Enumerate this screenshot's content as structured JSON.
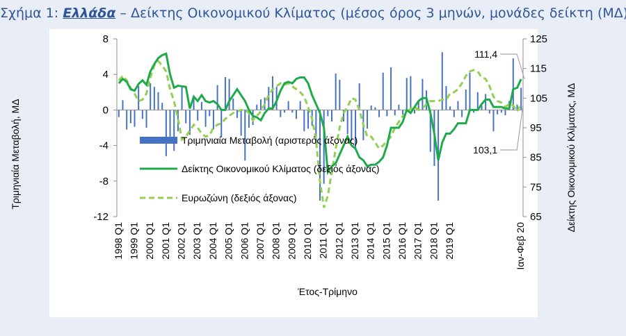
{
  "title": {
    "prefix": "Σχήμα 1: ",
    "country": "Ελλάδα",
    "rest": " – Δείκτης Οικονομικού Κλίματος (μέσος όρος 3 μηνών, μονάδες δείκτη (ΜΔ))"
  },
  "colors": {
    "bars": "#4472c4",
    "esi_line": "#1faa4a",
    "euro_line": "#92d050",
    "title": "#2e5597"
  },
  "chart_data": {
    "type": "bar+line",
    "xlabel": "Έτος-Τρίμηνο",
    "ylabel_left": "Τριμηνιαία Μεταβολή, ΜΔ",
    "ylabel_right": "Δείκτης Οικονομικού Κλίματος, ΜΔ",
    "ylim_left": [
      -12,
      8
    ],
    "ylim_right": [
      65,
      125
    ],
    "yticks_left": [
      "-12",
      "-8",
      "-4",
      "0",
      "4",
      "8"
    ],
    "yticks_right": [
      "65",
      "75",
      "85",
      "95",
      "105",
      "115",
      "125"
    ],
    "x_tick_labels": [
      "1998 Q1",
      "1999 Q1",
      "2000 Q1",
      "2001 Q1",
      "2002 Q1",
      "2003 Q1",
      "2004 Q1",
      "2005 Q1",
      "2006 Q1",
      "2007 Q1",
      "2008 Q1",
      "2009 Q1",
      "2010 Q1",
      "2011 Q1",
      "2012 Q1",
      "2013 Q1",
      "2014 Q1",
      "2015 Q1",
      "2016 Q1",
      "2017 Q1",
      "2018 Q1",
      "2019 Q1",
      "Ιαν-Φεβ 20"
    ],
    "legend_placement": "left-center",
    "series": [
      {
        "name": "Τριμηνιαία Μεταβολή (αριστερός άξονας)",
        "type": "bar",
        "axis": "left",
        "values": [
          -0.8,
          1.1,
          -2.2,
          -1.5,
          -1.9,
          2.7,
          -1.0,
          -2.0,
          3.0,
          2.6,
          2.0,
          0.8,
          -5.2,
          -3.0,
          -4.6,
          -2.4,
          2.7,
          -1.5,
          -2.8,
          1.6,
          -1.2,
          0.9,
          -1.9,
          -0.7,
          -2.2,
          2.8,
          -3.1,
          3.7,
          3.5,
          1.3,
          -0.9,
          -2.9,
          -5.7,
          -2.0,
          -1.7,
          0.6,
          1.2,
          1.4,
          2.6,
          3.8,
          2.6,
          -0.8,
          -0.3,
          1.0,
          -0.3,
          -1.0,
          1.0,
          -2.4,
          -2.1,
          -1.8,
          -3.9,
          -10.2,
          -8.3,
          -0.7,
          -1.3,
          4.1,
          3.4,
          -1.3,
          -2.7,
          -3.5,
          -4.3,
          3.0,
          -3.4,
          -2.1,
          0.5,
          0.3,
          -0.8,
          4.2,
          -0.7,
          4.8,
          -0.6,
          0.6,
          -0.5,
          3.6,
          3.8,
          -0.4,
          1.0,
          3.5,
          2.2,
          -4.7,
          -6.3,
          -10.2,
          6.5,
          2.7,
          0.4,
          -0.8,
          1.0,
          -0.8,
          2.3,
          4.2,
          -0.3,
          2.0,
          0.8,
          1.8,
          -0.4,
          -2.4,
          -0.5,
          -0.3,
          -0.6,
          1.0,
          5.8,
          0.6,
          2.5
        ]
      },
      {
        "name": "Δείκτης Οικονομικού Κλίματος (δεξιός άξονας)",
        "type": "line",
        "axis": "right",
        "values": [
          110.0,
          111.5,
          110.5,
          108.0,
          107.5,
          109.8,
          111.0,
          109.5,
          114.0,
          116.5,
          118.5,
          119.5,
          120.0,
          113.0,
          108.5,
          109.2,
          109.0,
          108.8,
          101.5,
          105.5,
          104.0,
          106.0,
          104.0,
          103.5,
          104.0,
          103.0,
          101.0,
          101.0,
          104.0,
          106.0,
          108.0,
          106.0,
          104.0,
          101.0,
          99.0,
          98.5,
          97.5,
          100.0,
          101.5,
          101.5,
          104.0,
          107.5,
          110.0,
          110.5,
          110.0,
          111.5,
          112.0,
          112.0,
          110.0,
          106.0,
          103.0,
          100.0,
          95.0,
          80.0,
          82.0,
          83.0,
          86.0,
          89.0,
          92.0,
          89.0,
          88.0,
          85.0,
          84.0,
          82.0,
          82.5,
          82.5,
          83.5,
          85.0,
          89.0,
          95.0,
          95.0,
          95.0,
          97.0,
          101.0,
          100.0,
          102.0,
          104.0,
          105.0,
          105.0,
          100.0,
          93.0,
          84.0,
          90.0,
          93.0,
          93.0,
          94.5,
          96.5,
          96.5,
          96.5,
          101.0,
          101.0,
          101.0,
          103.0,
          104.5,
          104.5,
          102.0,
          102.0,
          102.0,
          101.5,
          101.5,
          108.0,
          108.5,
          111.4
        ]
      },
      {
        "name": "Ευρωζώνη (δεξιός άξονας)",
        "type": "line-dashed",
        "axis": "right",
        "values": [
          111.0,
          112.5,
          111.0,
          108.5,
          106.5,
          104.0,
          104.5,
          106.5,
          112.0,
          116.0,
          117.5,
          116.0,
          114.0,
          108.0,
          104.0,
          98.0,
          91.0,
          92.0,
          94.0,
          96.0,
          95.0,
          93.0,
          92.0,
          92.5,
          95.0,
          96.0,
          96.5,
          98.0,
          99.0,
          100.0,
          100.5,
          101.0,
          101.0,
          100.0,
          97.5,
          99.0,
          100.5,
          103.0,
          106.0,
          108.0,
          109.0,
          110.0,
          109.5,
          110.0,
          109.0,
          108.0,
          107.0,
          105.5,
          102.0,
          98.0,
          91.0,
          77.0,
          68.0,
          72.0,
          80.0,
          88.0,
          95.0,
          100.0,
          102.0,
          105.0,
          104.5,
          101.0,
          96.0,
          92.0,
          92.0,
          90.0,
          88.0,
          89.0,
          90.5,
          92.0,
          95.0,
          97.0,
          99.0,
          100.0,
          101.5,
          102.0,
          101.0,
          101.5,
          103.0,
          104.0,
          104.0,
          104.0,
          104.5,
          104.5,
          106.5,
          107.0,
          108.0,
          110.0,
          112.5,
          114.0,
          114.5,
          114.0,
          112.0,
          111.5,
          109.0,
          105.5,
          104.0,
          103.5,
          102.0,
          103.0,
          102.5,
          100.5,
          103.1
        ]
      }
    ],
    "annotations": [
      {
        "text": "111,4",
        "target_series": 1
      },
      {
        "text": "103,1",
        "target_series": 2
      }
    ]
  }
}
